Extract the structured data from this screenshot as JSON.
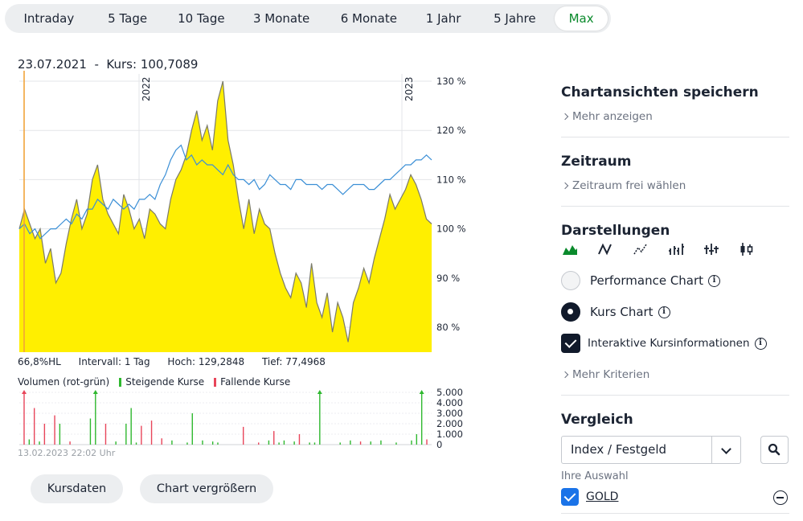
{
  "tabs": [
    {
      "label": "Intraday",
      "active": false
    },
    {
      "label": "5 Tage",
      "active": false
    },
    {
      "label": "10 Tage",
      "active": false
    },
    {
      "label": "3 Monate",
      "active": false
    },
    {
      "label": "6 Monate",
      "active": false
    },
    {
      "label": "1 Jahr",
      "active": false
    },
    {
      "label": "5 Jahre",
      "active": false
    },
    {
      "label": "Max",
      "active": true
    }
  ],
  "kurs_header": {
    "date": "23.07.2021",
    "separator": "-",
    "kurs_label": "Kurs:",
    "kurs_value": "100,7089"
  },
  "info": {
    "percent": "66,8%HL",
    "interval": "Intervall: 1 Tag",
    "high": "Hoch: 129,2848",
    "low": "Tief: 77,4968"
  },
  "volume_legend": {
    "title": "Volumen (rot-grün)",
    "rising": "Steigende Kurse",
    "falling": "Fallende Kurse"
  },
  "timestamp": "13.02.2023 22:02 Uhr",
  "buttons": {
    "kursdaten": "Kursdaten",
    "vergroessern": "Chart vergrößern"
  },
  "sidebar": {
    "saved_views": {
      "title": "Chartansichten speichern",
      "link": "Mehr anzeigen"
    },
    "zeitraum": {
      "title": "Zeitraum",
      "link": "Zeitraum frei wählen"
    },
    "darstellungen": {
      "title": "Darstellungen",
      "icons": [
        "mountain-chart-icon",
        "line-chart-icon",
        "line-dots-chart-icon",
        "ohlc-chart-icon",
        "hlc-chart-icon",
        "candlestick-chart-icon"
      ],
      "performance_label": "Performance Chart",
      "kurs_label": "Kurs Chart",
      "interactive_label": "Interaktive Kursinformationen",
      "more_link": "Mehr Kriterien"
    },
    "vergleich": {
      "title": "Vergleich",
      "select_value": "Index / Festgeld",
      "ihre_auswahl": "Ihre Auswahl",
      "selected_item": "GOLD"
    }
  },
  "colors": {
    "accent_green": "#0a8a2c",
    "area_fill": "#ffef00",
    "area_line": "#7a7a6a",
    "compare_line": "#3b8fd6",
    "rising": "#2fb82f",
    "falling": "#e8455a",
    "cursor_line": "#f2a33a"
  },
  "chart_data": [
    {
      "type": "area",
      "x_start": "2021-07-23",
      "x_end": "2023-02-13",
      "year_labels": [
        "2022",
        "2023"
      ],
      "y_ticks": [
        "130 %",
        "120 %",
        "110 %",
        "100 %",
        "90 %",
        "80 %"
      ],
      "ylim": [
        75,
        131
      ],
      "grid": true,
      "series": [
        {
          "name": "",
          "role": "main",
          "values": [
            100,
            104,
            101,
            98,
            100,
            93,
            96,
            89,
            91,
            97,
            102,
            106,
            100,
            103,
            110,
            113,
            106,
            103,
            101,
            99,
            107,
            104,
            100,
            102,
            98,
            104,
            103,
            101,
            100,
            106,
            110,
            112,
            115,
            120,
            124,
            118,
            121,
            116,
            126,
            130,
            118,
            113,
            106,
            100,
            106,
            99,
            104,
            101,
            100,
            95,
            91,
            88,
            86,
            91,
            89,
            84,
            93,
            85,
            82,
            87,
            79,
            85,
            82,
            77,
            85,
            88,
            92,
            89,
            94,
            98,
            102,
            107,
            104,
            106,
            108,
            111,
            109,
            106,
            102,
            101
          ]
        },
        {
          "name": "",
          "role": "compare",
          "values": [
            100,
            101,
            99,
            100,
            98,
            99,
            100,
            100,
            101,
            102,
            101,
            103,
            102,
            104,
            104,
            106,
            105,
            104,
            106,
            105,
            104,
            105,
            104,
            106,
            106,
            107,
            106,
            109,
            111,
            114,
            116,
            117,
            114,
            115,
            113,
            114,
            113,
            113,
            112,
            111,
            113,
            111,
            110,
            110,
            109,
            110,
            108,
            109,
            111,
            110,
            109,
            109,
            108,
            110,
            110,
            109,
            109,
            109,
            108,
            109,
            109,
            108,
            107,
            108,
            109,
            109,
            109,
            108,
            108,
            109,
            110,
            110,
            111,
            112,
            113,
            113,
            114,
            114,
            115,
            114
          ]
        }
      ]
    },
    {
      "type": "bar",
      "ylabel": "Volumen",
      "y_ticks": [
        "5.000",
        "4.000",
        "3.000",
        "2.000",
        "1.000",
        "0"
      ],
      "ylim": [
        0,
        5000
      ],
      "series": [
        {
          "name": "Steigende Kurse",
          "values": [
            0,
            500,
            0,
            300,
            0,
            0,
            0,
            2000,
            0,
            0,
            0,
            0,
            0,
            2500,
            5000,
            0,
            0,
            0,
            300,
            0,
            2000,
            3500,
            200,
            0,
            0,
            0,
            0,
            0,
            0,
            400,
            0,
            0,
            200,
            3000,
            0,
            400,
            0,
            300,
            200,
            0,
            0,
            0,
            0,
            0,
            0,
            0,
            0,
            0,
            400,
            0,
            200,
            400,
            0,
            300,
            0,
            0,
            200,
            200,
            5000,
            0,
            0,
            0,
            200,
            0,
            400,
            0,
            0,
            0,
            300,
            0,
            400,
            0,
            0,
            200,
            0,
            0,
            400,
            1000,
            5000,
            0
          ]
        },
        {
          "name": "Fallende Kurse",
          "values": [
            5000,
            0,
            3500,
            0,
            2000,
            0,
            2800,
            0,
            0,
            300,
            0,
            0,
            0,
            0,
            0,
            0,
            2000,
            0,
            0,
            0,
            0,
            0,
            0,
            1800,
            0,
            2300,
            0,
            600,
            0,
            0,
            0,
            0,
            0,
            0,
            0,
            0,
            0,
            0,
            0,
            0,
            0,
            0,
            0,
            1700,
            0,
            0,
            200,
            0,
            0,
            1300,
            0,
            0,
            0,
            0,
            1000,
            0,
            0,
            0,
            0,
            0,
            0,
            0,
            0,
            0,
            0,
            0,
            300,
            0,
            0,
            0,
            0,
            0,
            0,
            0,
            0,
            0,
            0,
            0,
            0,
            500
          ]
        }
      ]
    }
  ]
}
